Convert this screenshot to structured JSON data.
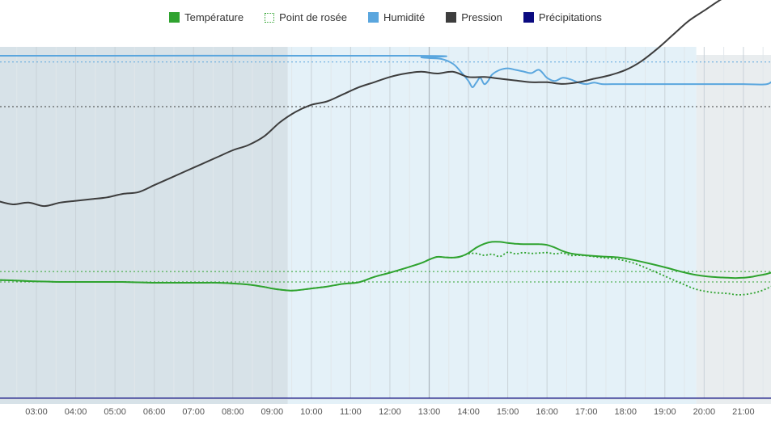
{
  "chart_data": {
    "type": "line",
    "title": "",
    "xlabel": "",
    "ylabel": "",
    "x_tick_labels": [
      "03:00",
      "04:00",
      "05:00",
      "06:00",
      "07:00",
      "08:00",
      "09:00",
      "10:00",
      "11:00",
      "12:00",
      "13:00",
      "14:00",
      "15:00",
      "16:00",
      "17:00",
      "18:00",
      "19:00",
      "20:00",
      "21:00"
    ],
    "x_ticks_hours": [
      3,
      4,
      5,
      6,
      7,
      8,
      9,
      10,
      11,
      12,
      13,
      14,
      15,
      16,
      17,
      18,
      19,
      20,
      21
    ],
    "xlim": [
      2.0,
      21.8
    ],
    "grid": true,
    "legend_position": "top-center",
    "night_bands": [
      {
        "start": 2.0,
        "end": 9.4,
        "color": "#d7e2e8"
      },
      {
        "start": 19.8,
        "end": 21.8,
        "color": "#e9edef"
      }
    ],
    "day_band": {
      "start": 9.4,
      "end": 19.8,
      "color": "#e4f1f8"
    },
    "series": [
      {
        "name": "Température",
        "color": "#2fa32f",
        "style": "solid",
        "x": [
          2.0,
          2.4,
          2.8,
          3.2,
          3.6,
          4.0,
          4.4,
          4.8,
          5.2,
          5.6,
          6.0,
          6.4,
          6.8,
          7.2,
          7.6,
          8.0,
          8.4,
          8.8,
          9.0,
          9.2,
          9.4,
          9.6,
          10.0,
          10.4,
          10.8,
          11.2,
          11.6,
          12.0,
          12.4,
          12.8,
          13.0,
          13.2,
          13.4,
          13.6,
          13.8,
          14.0,
          14.2,
          14.4,
          14.6,
          14.8,
          15.0,
          15.2,
          15.4,
          15.6,
          15.8,
          16.0,
          16.2,
          16.4,
          16.6,
          16.8,
          17.0,
          17.4,
          17.8,
          18.2,
          18.6,
          19.0,
          19.4,
          19.8,
          20.2,
          20.6,
          20.8,
          21.0,
          21.2,
          21.4,
          21.6,
          21.8
        ],
        "y": [
          0.74,
          0.75,
          0.77,
          0.78,
          0.79,
          0.79,
          0.79,
          0.79,
          0.79,
          0.8,
          0.81,
          0.81,
          0.81,
          0.81,
          0.81,
          0.83,
          0.86,
          0.92,
          0.96,
          0.99,
          1.01,
          1.01,
          0.96,
          0.91,
          0.84,
          0.8,
          0.66,
          0.55,
          0.43,
          0.3,
          0.21,
          0.14,
          0.15,
          0.16,
          0.13,
          0.04,
          -0.1,
          -0.2,
          -0.25,
          -0.25,
          -0.22,
          -0.2,
          -0.19,
          -0.19,
          -0.19,
          -0.17,
          -0.1,
          -0.01,
          0.05,
          0.08,
          0.1,
          0.13,
          0.15,
          0.22,
          0.31,
          0.41,
          0.52,
          0.61,
          0.66,
          0.68,
          0.69,
          0.68,
          0.66,
          0.62,
          0.58,
          0.52
        ]
      },
      {
        "name": "Point de rosée",
        "color": "#2fa32f",
        "style": "dotted",
        "x": [
          2.0,
          2.4,
          2.8,
          3.2,
          3.6,
          4.0,
          4.4,
          4.8,
          5.2,
          5.6,
          6.0,
          6.4,
          6.8,
          7.2,
          7.6,
          8.0,
          8.4,
          8.8,
          9.0,
          9.2,
          9.4,
          9.6,
          10.0,
          10.4,
          10.8,
          11.2,
          11.6,
          12.0,
          12.4,
          12.8,
          13.0,
          13.2,
          13.4,
          13.6,
          13.8,
          14.0,
          14.2,
          14.4,
          14.6,
          14.8,
          15.0,
          15.2,
          15.4,
          15.6,
          15.8,
          16.0,
          16.2,
          16.4,
          16.6,
          16.8,
          17.0,
          17.4,
          17.8,
          18.2,
          18.6,
          19.0,
          19.4,
          19.8,
          20.2,
          20.6,
          20.8,
          21.0,
          21.2,
          21.4,
          21.6,
          21.8
        ],
        "y": [
          0.74,
          0.75,
          0.77,
          0.78,
          0.79,
          0.79,
          0.79,
          0.79,
          0.79,
          0.8,
          0.81,
          0.81,
          0.81,
          0.81,
          0.81,
          0.83,
          0.86,
          0.92,
          0.96,
          0.99,
          1.01,
          1.01,
          0.96,
          0.91,
          0.84,
          0.8,
          0.66,
          0.55,
          0.43,
          0.3,
          0.21,
          0.14,
          0.15,
          0.16,
          0.13,
          0.06,
          0.05,
          0.1,
          0.07,
          0.13,
          0.02,
          0.06,
          0.03,
          0.05,
          0.04,
          0.03,
          0.06,
          0.04,
          0.1,
          0.1,
          0.11,
          0.16,
          0.2,
          0.3,
          0.46,
          0.64,
          0.82,
          0.98,
          1.06,
          1.09,
          1.12,
          1.12,
          1.09,
          1.04,
          0.96,
          0.86
        ]
      },
      {
        "name": "Humidité",
        "color": "#5aa6de",
        "style": "solid",
        "x": [
          2.0,
          12.6,
          12.8,
          13.0,
          13.3,
          13.6,
          13.8,
          14.0,
          14.1,
          14.2,
          14.3,
          14.4,
          14.5,
          14.6,
          14.8,
          15.0,
          15.2,
          15.4,
          15.6,
          15.8,
          16.0,
          16.2,
          16.4,
          16.6,
          16.8,
          17.0,
          17.2,
          17.4,
          17.8,
          18.2,
          18.6,
          19.0,
          19.4,
          19.8,
          20.4,
          21.0,
          21.6,
          21.8
        ],
        "y": [
          100,
          100,
          99,
          98.5,
          98,
          95,
          90,
          84,
          80,
          83,
          86,
          82,
          84,
          88,
          91,
          92,
          91,
          90,
          89,
          91,
          86,
          84,
          86,
          85,
          83,
          82,
          83,
          82,
          82,
          82,
          82,
          82,
          82,
          82,
          82,
          82,
          82,
          86
        ]
      },
      {
        "name": "Pression",
        "color": "#3d3d3d",
        "style": "solid",
        "x": [
          2.0,
          2.4,
          2.8,
          3.2,
          3.6,
          4.0,
          4.4,
          4.8,
          5.2,
          5.6,
          6.0,
          6.4,
          6.8,
          7.2,
          7.6,
          8.0,
          8.4,
          8.8,
          9.2,
          9.6,
          10.0,
          10.4,
          10.8,
          11.2,
          11.6,
          12.0,
          12.4,
          12.8,
          13.2,
          13.6,
          14.0,
          14.4,
          14.8,
          15.2,
          15.6,
          16.0,
          16.4,
          16.8,
          17.2,
          17.6,
          18.0,
          18.4,
          18.8,
          19.2,
          19.6,
          20.0,
          20.4,
          20.8,
          21.2,
          21.6,
          21.8
        ],
        "y": [
          1014.9,
          1014.7,
          1014.8,
          1014.6,
          1014.8,
          1014.9,
          1015.0,
          1015.1,
          1015.3,
          1015.4,
          1015.8,
          1016.2,
          1016.6,
          1017.0,
          1017.4,
          1017.8,
          1018.1,
          1018.6,
          1019.4,
          1020.0,
          1020.4,
          1020.6,
          1021.0,
          1021.4,
          1021.7,
          1022.0,
          1022.2,
          1022.3,
          1022.2,
          1022.3,
          1022.0,
          1022.0,
          1021.9,
          1021.8,
          1021.7,
          1021.7,
          1021.6,
          1021.7,
          1021.9,
          1022.1,
          1022.4,
          1022.9,
          1023.6,
          1024.4,
          1025.2,
          1025.8,
          1026.4,
          1026.9,
          1027.2,
          1027.5,
          1027.6
        ]
      },
      {
        "name": "Précipitations",
        "color": "#0a0a80",
        "style": "solid",
        "x": [
          2.0,
          21.8
        ],
        "y": [
          0,
          0
        ]
      }
    ],
    "reference_lines": [
      {
        "series": "Humidité",
        "value": 96,
        "style": "dotted",
        "color": "#5aa6de"
      },
      {
        "series": "Pression",
        "value": 1020.3,
        "style": "dotted",
        "color": "#3d3d3d"
      },
      {
        "series": "Température",
        "value": 0.52,
        "style": "dotted",
        "color": "#2fa32f"
      },
      {
        "series": "Température",
        "value": 0.79,
        "style": "dotted",
        "color": "#2fa32f"
      }
    ]
  },
  "legend": {
    "items": [
      {
        "label": "Température",
        "color": "#2fa32f",
        "swatch": "solid"
      },
      {
        "label": "Point de rosée",
        "color": "#2fa32f",
        "swatch": "dotted"
      },
      {
        "label": "Humidité",
        "color": "#5aa6de",
        "swatch": "solid"
      },
      {
        "label": "Pression",
        "color": "#3d3d3d",
        "swatch": "solid"
      },
      {
        "label": "Précipitations",
        "color": "#0a0a80",
        "swatch": "solid"
      }
    ]
  }
}
